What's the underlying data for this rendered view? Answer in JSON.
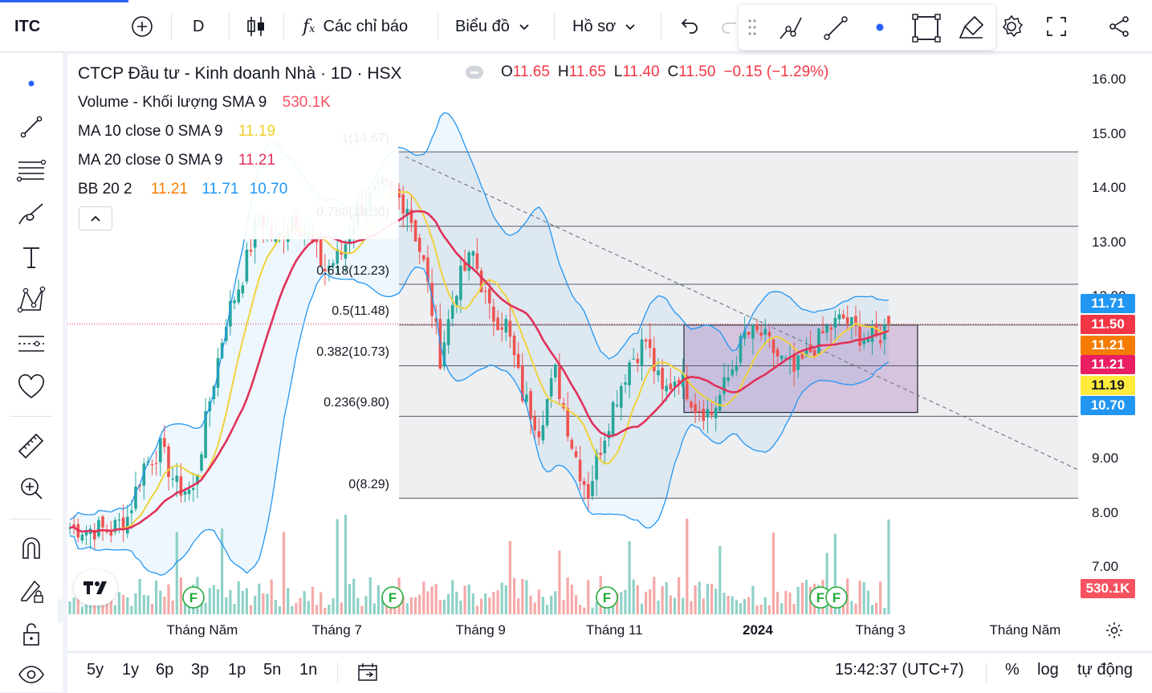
{
  "toolbar": {
    "symbol": "ITC",
    "interval": "D",
    "indicators_label": "Các chỉ báo",
    "chart_type_label": "Biểu đồ",
    "profile_label": "Hồ sơ"
  },
  "legend": {
    "title": "CTCP Đầu tư - Kinh doanh Nhà · 1D · HSX",
    "volume_label": "Volume - Khối lượng SMA 9",
    "volume_value": "530.1K",
    "ma10_label": "MA 10 close 0 SMA 9",
    "ma10_value": "11.19",
    "ma20_label": "MA 20 close 0 SMA 9",
    "ma20_value": "11.21",
    "bb_label": "BB 20 2",
    "bb_mid": "11.21",
    "bb_upper": "11.71",
    "bb_lower": "10.70"
  },
  "ohlc": {
    "o_label": "O",
    "o": "11.65",
    "h_label": "H",
    "h": "11.65",
    "l_label": "L",
    "l": "11.40",
    "c_label": "C",
    "c": "11.50",
    "change": "−0.15 (−1.29%)"
  },
  "fib_labels": [
    "1(14.67)",
    "0.786(13.30)",
    "0.618(12.23)",
    "0.5(11.48)",
    "0.382(10.73)",
    "0.236(9.80)",
    "0(8.29)"
  ],
  "price_axis": [
    "16.00",
    "15.00",
    "14.00",
    "13.00",
    "12.00",
    "9.00",
    "8.00",
    "7.00"
  ],
  "price_labels": [
    {
      "text": "11.71",
      "color": "#2196f3"
    },
    {
      "text": "11.50",
      "color": "#f23645"
    },
    {
      "text": "11.21",
      "color": "#f57c00"
    },
    {
      "text": "11.21",
      "color": "#e91e63"
    },
    {
      "text": "11.19",
      "color": "#ffeb3b"
    },
    {
      "text": "10.70",
      "color": "#2196f3"
    },
    {
      "text": "530.1K",
      "color": "#f7525f"
    }
  ],
  "time_axis": [
    "Tháng Năm",
    "Tháng 7",
    "Tháng 9",
    "Tháng 11",
    "2024",
    "Tháng 3",
    "Tháng Năm"
  ],
  "bottom": {
    "ranges": [
      "5y",
      "1y",
      "6p",
      "3p",
      "1p",
      "5n",
      "1n"
    ],
    "clock": "15:42:37 (UTC+7)",
    "percent": "%",
    "log": "log",
    "auto": "tự động"
  },
  "earnings_marker": "F",
  "colors": {
    "up": "#26a69a",
    "down": "#ef5350",
    "ma10": "#f0d23c",
    "ma20": "#e0315a",
    "bb": "#2196f3",
    "accent": "#2962ff"
  }
}
